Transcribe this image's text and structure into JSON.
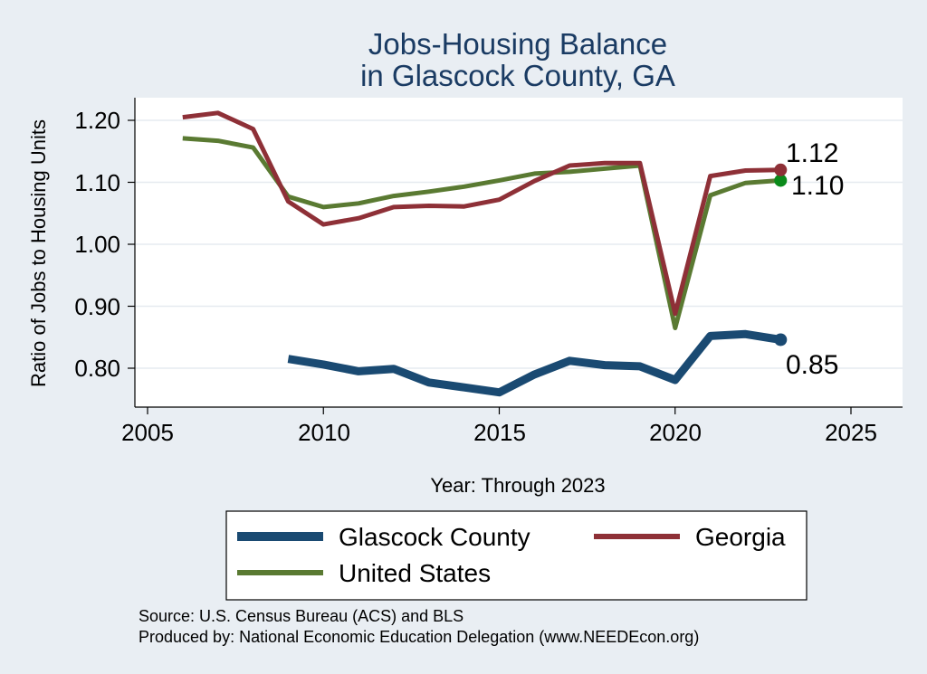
{
  "chart_data": {
    "type": "line",
    "title": [
      "Jobs-Housing Balance",
      "in Glascock County, GA"
    ],
    "xlabel": "Year: Through 2023",
    "ylabel": "Ratio of Jobs to Housing Units",
    "xlim": [
      2005,
      2026.5
    ],
    "ylim": [
      0.74,
      1.24
    ],
    "x_ticks": [
      2005,
      2010,
      2015,
      2020,
      2025
    ],
    "y_ticks": [
      0.8,
      0.9,
      1.0,
      1.1,
      1.2
    ],
    "x_tick_labels": [
      "2005",
      "2010",
      "2015",
      "2020",
      "2025"
    ],
    "y_tick_labels": [
      "0.80",
      "0.90",
      "1.00",
      "1.10",
      "1.20"
    ],
    "grid": true,
    "series": [
      {
        "key": "glascock",
        "name": "Glascock County",
        "color": "#1a4a72",
        "width": 9,
        "x": [
          2009,
          2010,
          2011,
          2012,
          2013,
          2014,
          2015,
          2016,
          2017,
          2018,
          2019,
          2020,
          2021,
          2022,
          2023
        ],
        "values": [
          0.815,
          0.806,
          0.795,
          0.799,
          0.777,
          0.769,
          0.761,
          0.79,
          0.812,
          0.805,
          0.803,
          0.781,
          0.852,
          0.855,
          0.846
        ],
        "end_label": "0.85"
      },
      {
        "key": "georgia",
        "name": "Georgia",
        "color": "#8e3037",
        "width": 5,
        "x": [
          2006,
          2007,
          2008,
          2009,
          2010,
          2011,
          2012,
          2013,
          2014,
          2015,
          2016,
          2017,
          2018,
          2019,
          2020,
          2021,
          2022,
          2023
        ],
        "values": [
          1.205,
          1.212,
          1.186,
          1.069,
          1.032,
          1.042,
          1.06,
          1.062,
          1.061,
          1.072,
          1.102,
          1.127,
          1.131,
          1.131,
          0.888,
          1.11,
          1.119,
          1.12
        ],
        "end_label": "1.12"
      },
      {
        "key": "us",
        "name": "United States",
        "color": "#5a7a32",
        "width": 5,
        "x": [
          2006,
          2007,
          2008,
          2009,
          2010,
          2011,
          2012,
          2013,
          2014,
          2015,
          2016,
          2017,
          2018,
          2019,
          2020,
          2021,
          2022,
          2023
        ],
        "values": [
          1.171,
          1.167,
          1.156,
          1.077,
          1.06,
          1.066,
          1.078,
          1.085,
          1.093,
          1.103,
          1.114,
          1.117,
          1.122,
          1.127,
          0.865,
          1.079,
          1.099,
          1.103
        ],
        "end_label": "1.10",
        "end_marker_color": "#0a8a1a"
      }
    ],
    "legend": {
      "placement": "bottom",
      "entries": [
        "Glascock County",
        "Georgia",
        "United States"
      ]
    }
  },
  "source_note": "Source: U.S. Census Bureau (ACS) and BLS",
  "producer_note": "Produced by: National Economic Education Delegation (www.NEEDEcon.org)",
  "colors": {
    "background": "#e9eef3",
    "plot_background": "#ffffff",
    "grid": "#e6ebf0",
    "title": "#1a3b63"
  }
}
